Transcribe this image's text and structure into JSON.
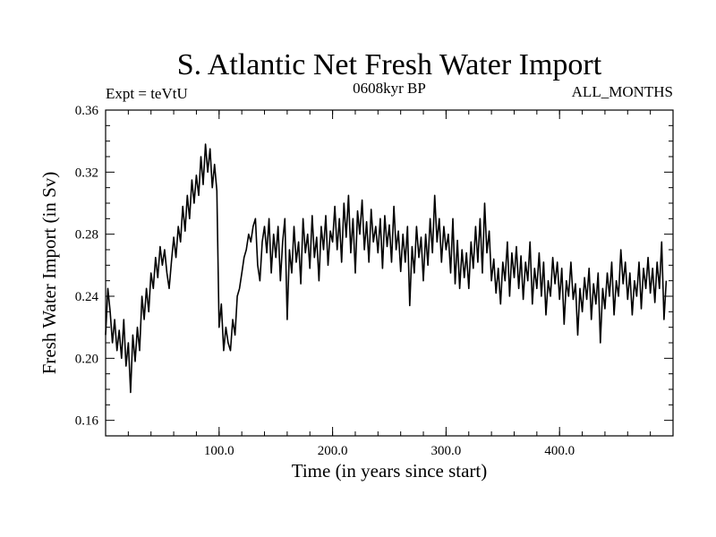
{
  "chart_data": {
    "type": "line",
    "title": "S. Atlantic Net Fresh Water Import",
    "subtitle_left": "Expt = teVtU",
    "subtitle_center": "0608kyr BP",
    "subtitle_right": "ALL_MONTHS",
    "xlabel": "Time (in years since start)",
    "ylabel": "Fresh Water Import (in Sv)",
    "xlim": [
      0,
      500
    ],
    "ylim": [
      0.15,
      0.36
    ],
    "x_ticks": [
      100,
      200,
      300,
      400
    ],
    "x_tick_labels": [
      "100.0",
      "200.0",
      "300.0",
      "400.0"
    ],
    "y_ticks": [
      0.16,
      0.2,
      0.24,
      0.28,
      0.32,
      0.36
    ],
    "y_tick_labels": [
      "0.16",
      "0.20",
      "0.24",
      "0.28",
      "0.32",
      "0.36"
    ],
    "grid": false,
    "line_color": "#000000",
    "series": [
      {
        "x_start": 0,
        "x_step": 2,
        "values": [
          0.215,
          0.245,
          0.23,
          0.21,
          0.225,
          0.205,
          0.218,
          0.2,
          0.225,
          0.195,
          0.21,
          0.178,
          0.215,
          0.198,
          0.22,
          0.205,
          0.24,
          0.225,
          0.245,
          0.23,
          0.255,
          0.245,
          0.265,
          0.252,
          0.272,
          0.26,
          0.27,
          0.255,
          0.245,
          0.262,
          0.278,
          0.265,
          0.285,
          0.275,
          0.298,
          0.282,
          0.305,
          0.29,
          0.315,
          0.3,
          0.318,
          0.305,
          0.33,
          0.312,
          0.338,
          0.32,
          0.335,
          0.31,
          0.325,
          0.308,
          0.22,
          0.235,
          0.205,
          0.22,
          0.21,
          0.205,
          0.225,
          0.215,
          0.24,
          0.245,
          0.255,
          0.265,
          0.27,
          0.28,
          0.275,
          0.285,
          0.29,
          0.26,
          0.25,
          0.275,
          0.285,
          0.268,
          0.29,
          0.255,
          0.28,
          0.265,
          0.285,
          0.25,
          0.275,
          0.29,
          0.225,
          0.27,
          0.255,
          0.285,
          0.262,
          0.275,
          0.248,
          0.29,
          0.268,
          0.28,
          0.258,
          0.292,
          0.265,
          0.278,
          0.25,
          0.285,
          0.27,
          0.292,
          0.26,
          0.282,
          0.275,
          0.298,
          0.27,
          0.29,
          0.262,
          0.3,
          0.278,
          0.305,
          0.268,
          0.29,
          0.255,
          0.295,
          0.28,
          0.302,
          0.27,
          0.288,
          0.262,
          0.296,
          0.275,
          0.285,
          0.268,
          0.29,
          0.258,
          0.292,
          0.272,
          0.286,
          0.262,
          0.298,
          0.27,
          0.282,
          0.256,
          0.28,
          0.262,
          0.285,
          0.234,
          0.272,
          0.255,
          0.285,
          0.265,
          0.278,
          0.25,
          0.28,
          0.26,
          0.29,
          0.268,
          0.305,
          0.275,
          0.29,
          0.262,
          0.285,
          0.27,
          0.28,
          0.255,
          0.29,
          0.248,
          0.276,
          0.245,
          0.27,
          0.252,
          0.268,
          0.245,
          0.275,
          0.258,
          0.285,
          0.262,
          0.29,
          0.255,
          0.3,
          0.268,
          0.282,
          0.25,
          0.264,
          0.242,
          0.258,
          0.235,
          0.262,
          0.25,
          0.275,
          0.24,
          0.268,
          0.252,
          0.272,
          0.245,
          0.266,
          0.238,
          0.262,
          0.25,
          0.275,
          0.235,
          0.258,
          0.245,
          0.268,
          0.24,
          0.262,
          0.228,
          0.25,
          0.24,
          0.265,
          0.248,
          0.262,
          0.238,
          0.258,
          0.222,
          0.25,
          0.24,
          0.262,
          0.238,
          0.248,
          0.215,
          0.245,
          0.23,
          0.252,
          0.238,
          0.258,
          0.225,
          0.248,
          0.235,
          0.255,
          0.21,
          0.245,
          0.232,
          0.255,
          0.24,
          0.262,
          0.228,
          0.25,
          0.24,
          0.27,
          0.248,
          0.262,
          0.238,
          0.255,
          0.228,
          0.25,
          0.24,
          0.262,
          0.232,
          0.258,
          0.245,
          0.265,
          0.242,
          0.258,
          0.236,
          0.262,
          0.245,
          0.275,
          0.225,
          0.25
        ]
      }
    ]
  }
}
